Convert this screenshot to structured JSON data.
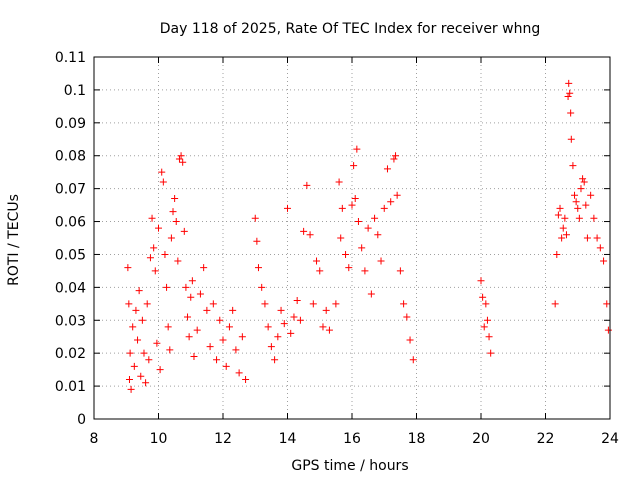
{
  "chart_data": {
    "type": "scatter",
    "title": "Day 118 of 2025, Rate Of TEC Index for receiver whng",
    "xlabel": "GPS time / hours",
    "ylabel": "ROTI / TECUs",
    "xlim": [
      8,
      24
    ],
    "ylim": [
      0,
      0.11
    ],
    "x_ticks": [
      "8",
      "10",
      "12",
      "14",
      "16",
      "18",
      "20",
      "22",
      "24"
    ],
    "y_ticks": [
      "0",
      "0.01",
      "0.02",
      "0.03",
      "0.04",
      "0.05",
      "0.06",
      "0.07",
      "0.08",
      "0.09",
      "0.1",
      "0.11"
    ],
    "grid": true,
    "marker": "plus",
    "color": "#ff0000",
    "series": [
      {
        "points": [
          [
            9.05,
            0.046
          ],
          [
            9.08,
            0.035
          ],
          [
            9.1,
            0.012
          ],
          [
            9.12,
            0.02
          ],
          [
            9.15,
            0.009
          ],
          [
            9.2,
            0.028
          ],
          [
            9.25,
            0.016
          ],
          [
            9.3,
            0.033
          ],
          [
            9.35,
            0.024
          ],
          [
            9.4,
            0.039
          ],
          [
            9.45,
            0.013
          ],
          [
            9.5,
            0.03
          ],
          [
            9.55,
            0.02
          ],
          [
            9.6,
            0.011
          ],
          [
            9.65,
            0.035
          ],
          [
            9.7,
            0.018
          ],
          [
            9.75,
            0.049
          ],
          [
            9.8,
            0.061
          ],
          [
            9.85,
            0.052
          ],
          [
            9.9,
            0.045
          ],
          [
            9.95,
            0.023
          ],
          [
            10.0,
            0.058
          ],
          [
            10.05,
            0.015
          ],
          [
            10.1,
            0.075
          ],
          [
            10.15,
            0.072
          ],
          [
            10.2,
            0.05
          ],
          [
            10.25,
            0.04
          ],
          [
            10.3,
            0.028
          ],
          [
            10.35,
            0.021
          ],
          [
            10.4,
            0.055
          ],
          [
            10.45,
            0.063
          ],
          [
            10.5,
            0.067
          ],
          [
            10.55,
            0.06
          ],
          [
            10.6,
            0.048
          ],
          [
            10.65,
            0.079
          ],
          [
            10.7,
            0.08
          ],
          [
            10.75,
            0.078
          ],
          [
            10.8,
            0.057
          ],
          [
            10.85,
            0.04
          ],
          [
            10.9,
            0.031
          ],
          [
            10.95,
            0.025
          ],
          [
            11.0,
            0.037
          ],
          [
            11.05,
            0.042
          ],
          [
            11.1,
            0.019
          ],
          [
            11.2,
            0.027
          ],
          [
            11.3,
            0.038
          ],
          [
            11.4,
            0.046
          ],
          [
            11.5,
            0.033
          ],
          [
            11.6,
            0.022
          ],
          [
            11.7,
            0.035
          ],
          [
            11.8,
            0.018
          ],
          [
            11.9,
            0.03
          ],
          [
            12.0,
            0.024
          ],
          [
            12.1,
            0.016
          ],
          [
            12.2,
            0.028
          ],
          [
            12.3,
            0.033
          ],
          [
            12.4,
            0.021
          ],
          [
            12.5,
            0.014
          ],
          [
            12.6,
            0.025
          ],
          [
            12.7,
            0.012
          ],
          [
            13.0,
            0.061
          ],
          [
            13.05,
            0.054
          ],
          [
            13.1,
            0.046
          ],
          [
            13.2,
            0.04
          ],
          [
            13.3,
            0.035
          ],
          [
            13.4,
            0.028
          ],
          [
            13.5,
            0.022
          ],
          [
            13.6,
            0.018
          ],
          [
            13.7,
            0.025
          ],
          [
            13.8,
            0.033
          ],
          [
            13.9,
            0.029
          ],
          [
            14.0,
            0.064
          ],
          [
            14.1,
            0.026
          ],
          [
            14.2,
            0.031
          ],
          [
            14.3,
            0.036
          ],
          [
            14.4,
            0.03
          ],
          [
            14.5,
            0.057
          ],
          [
            14.6,
            0.071
          ],
          [
            14.7,
            0.056
          ],
          [
            14.8,
            0.035
          ],
          [
            14.9,
            0.048
          ],
          [
            15.0,
            0.045
          ],
          [
            15.1,
            0.028
          ],
          [
            15.2,
            0.033
          ],
          [
            15.3,
            0.027
          ],
          [
            15.5,
            0.035
          ],
          [
            15.6,
            0.072
          ],
          [
            15.65,
            0.055
          ],
          [
            15.7,
            0.064
          ],
          [
            15.8,
            0.05
          ],
          [
            15.9,
            0.046
          ],
          [
            16.0,
            0.065
          ],
          [
            16.05,
            0.077
          ],
          [
            16.1,
            0.067
          ],
          [
            16.15,
            0.082
          ],
          [
            16.2,
            0.06
          ],
          [
            16.3,
            0.052
          ],
          [
            16.4,
            0.045
          ],
          [
            16.5,
            0.058
          ],
          [
            16.6,
            0.038
          ],
          [
            16.7,
            0.061
          ],
          [
            16.8,
            0.056
          ],
          [
            16.9,
            0.048
          ],
          [
            17.0,
            0.064
          ],
          [
            17.1,
            0.076
          ],
          [
            17.2,
            0.066
          ],
          [
            17.3,
            0.079
          ],
          [
            17.35,
            0.08
          ],
          [
            17.4,
            0.068
          ],
          [
            17.5,
            0.045
          ],
          [
            17.6,
            0.035
          ],
          [
            17.7,
            0.031
          ],
          [
            17.8,
            0.024
          ],
          [
            17.9,
            0.018
          ],
          [
            20.0,
            0.042
          ],
          [
            20.05,
            0.037
          ],
          [
            20.1,
            0.028
          ],
          [
            20.15,
            0.035
          ],
          [
            20.2,
            0.03
          ],
          [
            20.25,
            0.025
          ],
          [
            20.3,
            0.02
          ],
          [
            22.3,
            0.035
          ],
          [
            22.35,
            0.05
          ],
          [
            22.4,
            0.062
          ],
          [
            22.45,
            0.064
          ],
          [
            22.5,
            0.055
          ],
          [
            22.55,
            0.058
          ],
          [
            22.6,
            0.061
          ],
          [
            22.65,
            0.056
          ],
          [
            22.7,
            0.098
          ],
          [
            22.72,
            0.102
          ],
          [
            22.75,
            0.099
          ],
          [
            22.78,
            0.093
          ],
          [
            22.8,
            0.085
          ],
          [
            22.85,
            0.077
          ],
          [
            22.9,
            0.068
          ],
          [
            22.95,
            0.066
          ],
          [
            23.0,
            0.064
          ],
          [
            23.05,
            0.061
          ],
          [
            23.1,
            0.07
          ],
          [
            23.15,
            0.073
          ],
          [
            23.2,
            0.072
          ],
          [
            23.25,
            0.065
          ],
          [
            23.3,
            0.055
          ],
          [
            23.4,
            0.068
          ],
          [
            23.5,
            0.061
          ],
          [
            23.6,
            0.055
          ],
          [
            23.7,
            0.052
          ],
          [
            23.8,
            0.048
          ],
          [
            23.9,
            0.035
          ],
          [
            23.95,
            0.027
          ]
        ]
      }
    ]
  }
}
